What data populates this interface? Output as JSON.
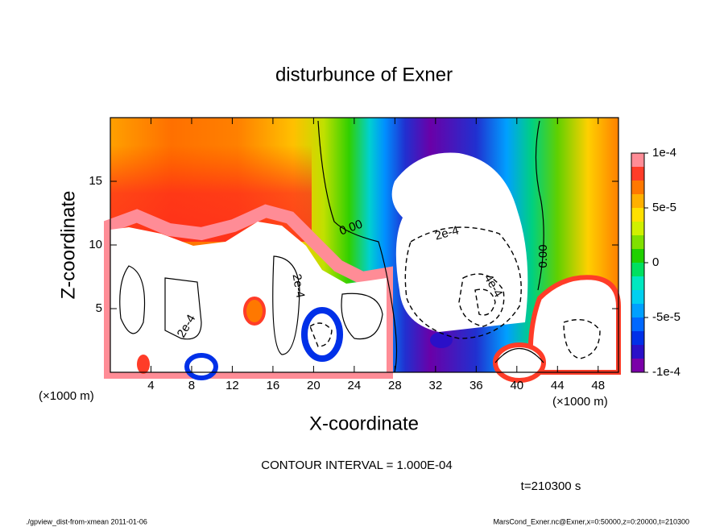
{
  "chart_data": {
    "type": "contour",
    "title": "disturbunce of Exner",
    "xlabel": "X-coordinate",
    "ylabel": "Z-coordinate",
    "xunit": "(×1000 m)",
    "xlim": [
      0,
      50
    ],
    "ylim": [
      0,
      20
    ],
    "xticks": [
      4,
      8,
      12,
      16,
      20,
      24,
      28,
      32,
      36,
      40,
      44,
      48
    ],
    "yticks": [
      5,
      10,
      15
    ],
    "colorbar": {
      "clim": [
        -0.0001,
        0.0001
      ],
      "ticks": [
        {
          "value": 0.0001,
          "label": "1e-4"
        },
        {
          "value": 5e-05,
          "label": "5e-5"
        },
        0,
        {
          "value": -5e-05,
          "label": "-5e-5"
        },
        {
          "value": -0.0001,
          "label": "-1e-4"
        }
      ],
      "colors": [
        "#7a00a8",
        "#2a10c8",
        "#0030e8",
        "#0068ff",
        "#00a0ff",
        "#00d0f0",
        "#00e8c0",
        "#00e060",
        "#20d000",
        "#80e000",
        "#d0f000",
        "#ffe000",
        "#ffb000",
        "#ff7800",
        "#ff3c28",
        "#ff8c96"
      ]
    },
    "contour_labels": [
      "0.00",
      "0.00",
      "2e-4",
      "4e-4",
      "2e-4",
      "2e-4"
    ],
    "contour_interval": "CONTOUR INTERVAL = 1.000E-04",
    "time": "t=210300 s",
    "footer_left": "./gpview_dist-from-xmean   2011-01-06",
    "footer_right": "MarsCond_Exner.nc@Exner,x=0:50000,z=0:20000,t=210300"
  }
}
